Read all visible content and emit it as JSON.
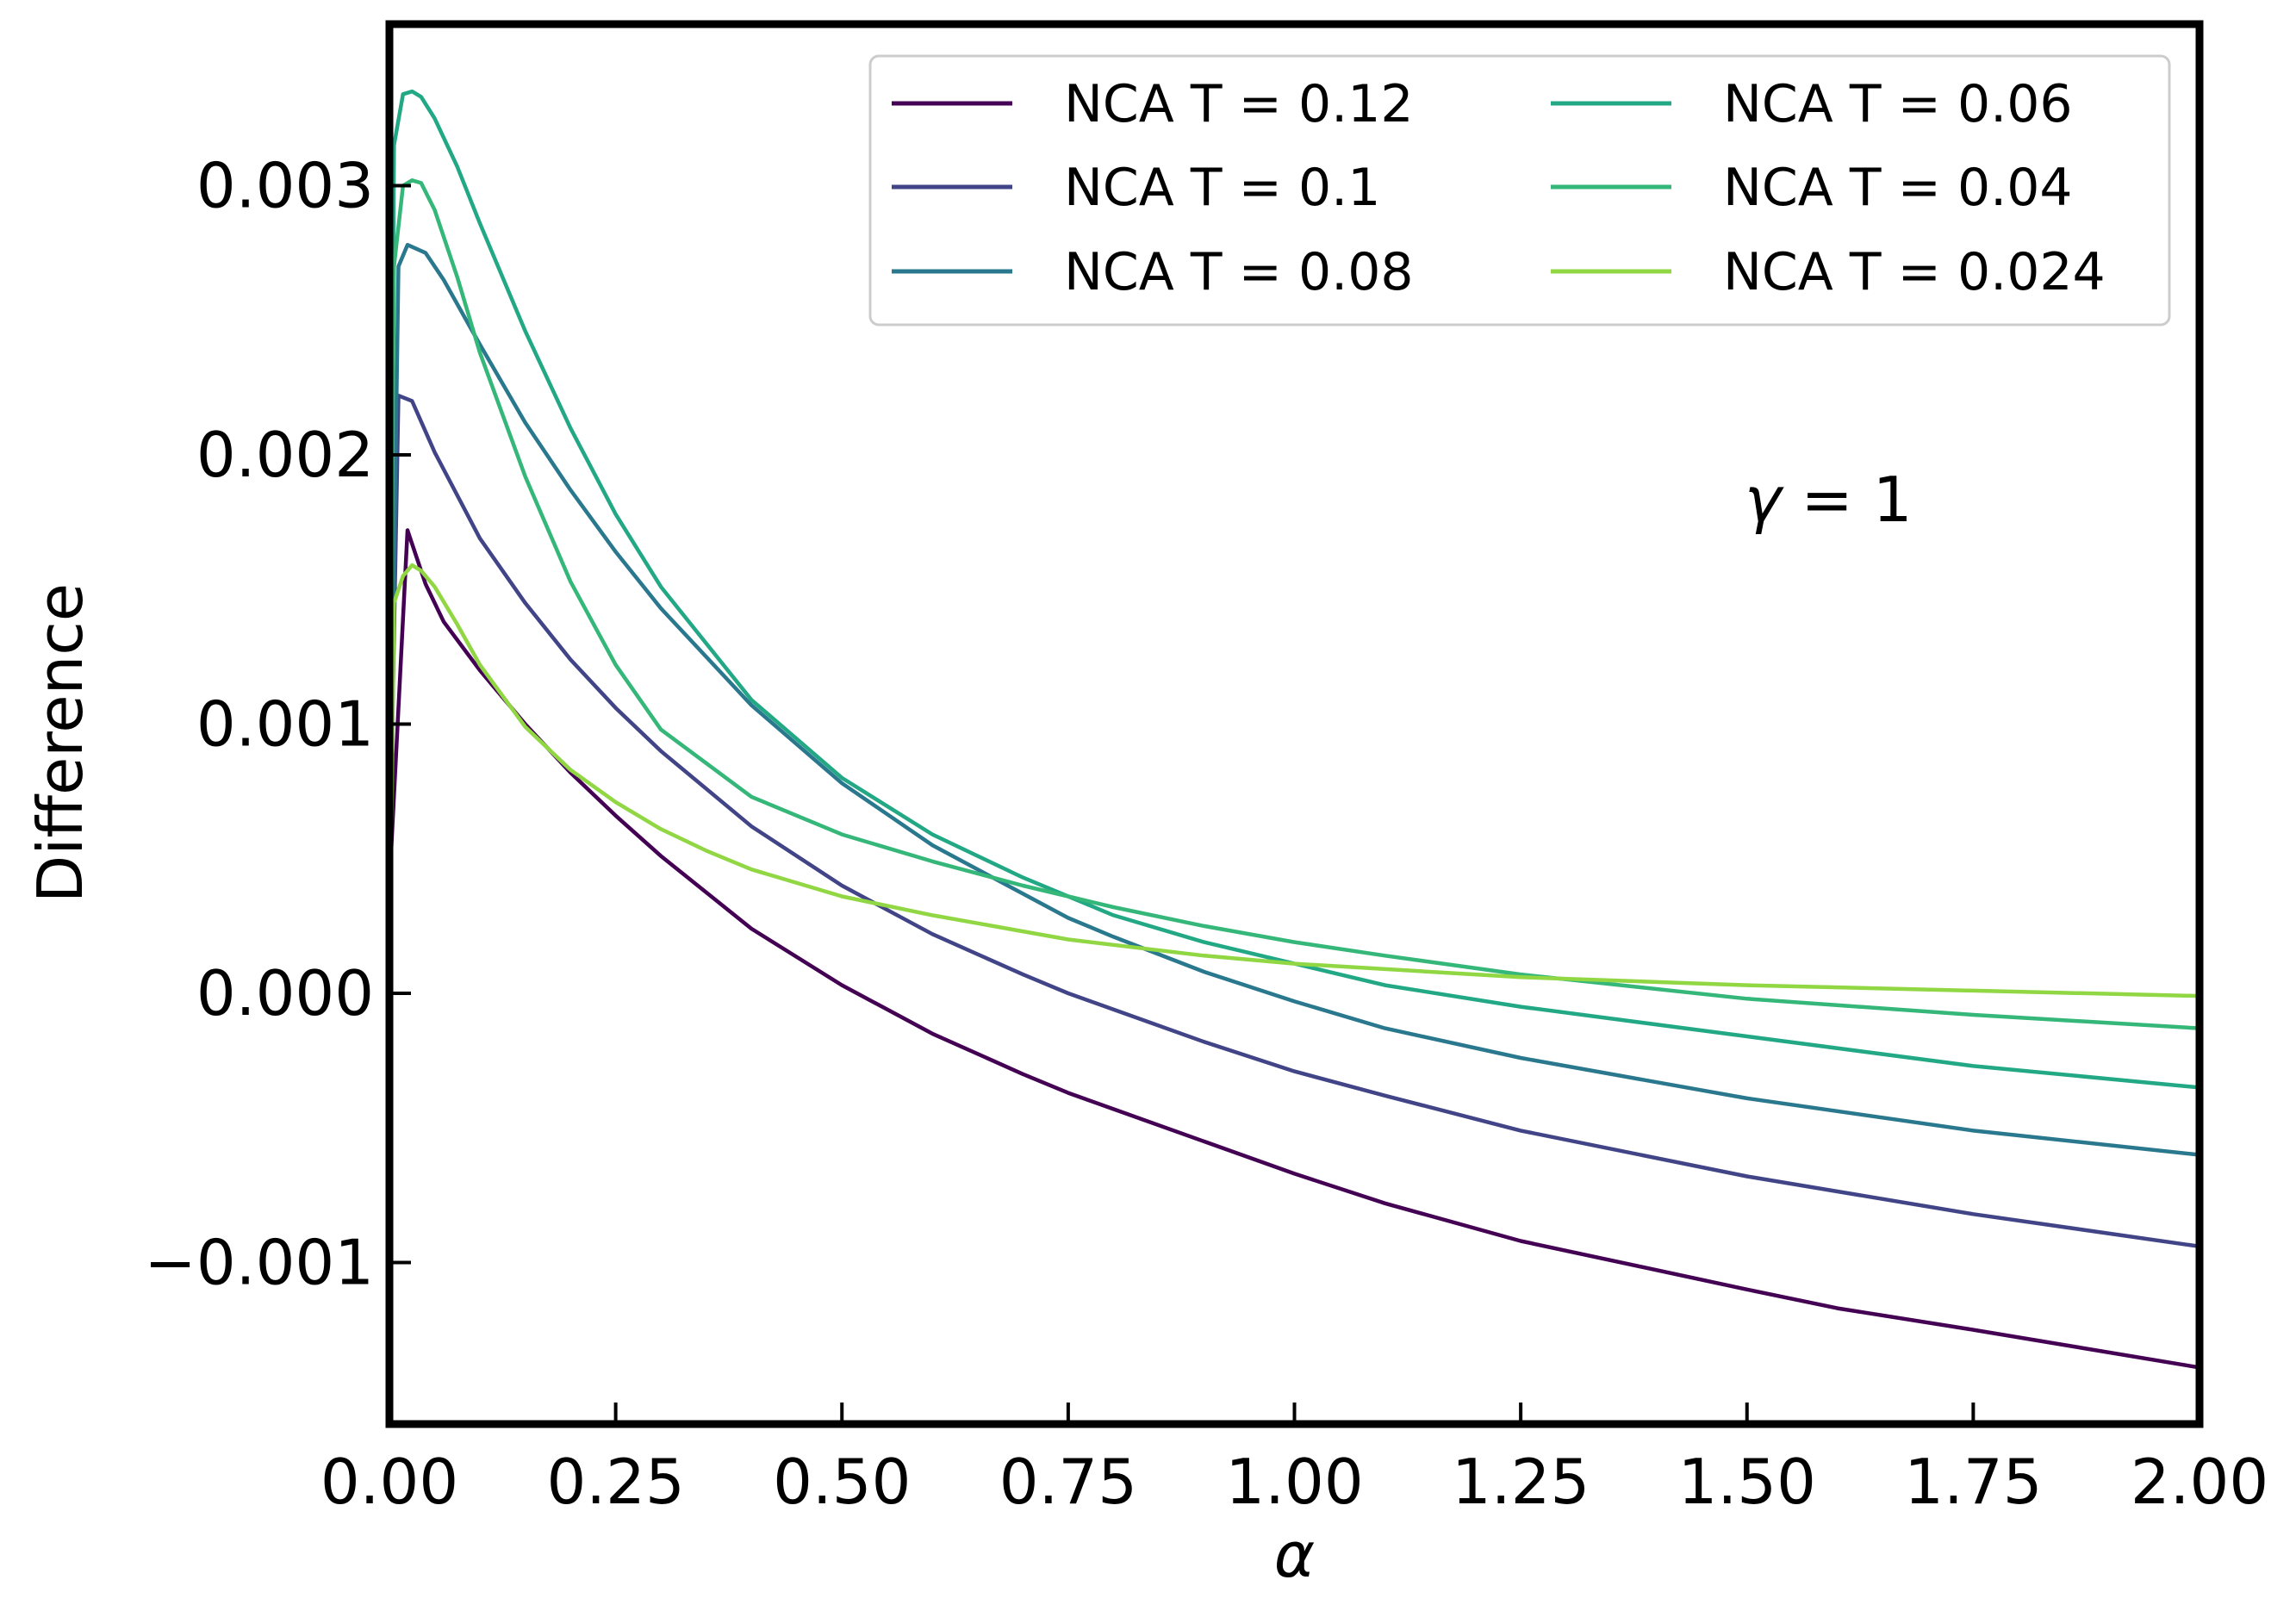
{
  "chart_data": {
    "type": "line",
    "xlabel": "α",
    "ylabel": "Difference",
    "xlim": [
      0,
      2
    ],
    "ylim": [
      -0.0016,
      0.0036
    ],
    "x_ticks": [
      {
        "value": 0,
        "label": "0.00"
      },
      {
        "value": 0.25,
        "label": "0.25"
      },
      {
        "value": 0.5,
        "label": "0.50"
      },
      {
        "value": 0.75,
        "label": "0.75"
      },
      {
        "value": 1.0,
        "label": "1.00"
      },
      {
        "value": 1.25,
        "label": "1.25"
      },
      {
        "value": 1.5,
        "label": "1.50"
      },
      {
        "value": 1.75,
        "label": "1.75"
      },
      {
        "value": 2.0,
        "label": "2.00"
      }
    ],
    "y_ticks": [
      {
        "value": -0.001,
        "label": "−0.001"
      },
      {
        "value": 0.0,
        "label": "0.000"
      },
      {
        "value": 0.001,
        "label": "0.001"
      },
      {
        "value": 0.002,
        "label": "0.002"
      },
      {
        "value": 0.003,
        "label": "0.003"
      }
    ],
    "grid": false,
    "legend_position": "top-right",
    "legend_columns": 2,
    "annotation": {
      "symbol": "γ",
      "rest": " = 1"
    },
    "series": [
      {
        "name": "NCA T = 0.12",
        "color": "#440154",
        "x": [
          0,
          0.02,
          0.04,
          0.06,
          0.08,
          0.1,
          0.15,
          0.2,
          0.25,
          0.3,
          0.4,
          0.5,
          0.6,
          0.7,
          0.75,
          0.8,
          0.9,
          1.0,
          1.1,
          1.25,
          1.5,
          1.6,
          1.75,
          2.0
        ],
        "y": [
          0.0004,
          0.00172,
          0.00152,
          0.00138,
          0.00129,
          0.0012,
          0.001,
          0.00082,
          0.00066,
          0.00051,
          0.00024,
          3e-05,
          -0.00015,
          -0.0003,
          -0.00037,
          -0.00043,
          -0.00055,
          -0.00067,
          -0.00078,
          -0.00092,
          -0.0011,
          -0.00117,
          -0.00125,
          -0.00139
        ]
      },
      {
        "name": "NCA T = 0.1",
        "color": "#414487",
        "x": [
          0,
          0.01,
          0.025,
          0.05,
          0.1,
          0.15,
          0.2,
          0.25,
          0.3,
          0.4,
          0.5,
          0.6,
          0.7,
          0.75,
          0.8,
          0.9,
          1.0,
          1.1,
          1.25,
          1.5,
          1.75,
          2.0
        ],
        "y": [
          0.0004,
          0.00222,
          0.0022,
          0.00201,
          0.00169,
          0.00145,
          0.00124,
          0.00106,
          0.0009,
          0.00062,
          0.0004,
          0.00022,
          7e-05,
          0.0,
          -6e-05,
          -0.00018,
          -0.00029,
          -0.00038,
          -0.00051,
          -0.00068,
          -0.00082,
          -0.00094
        ]
      },
      {
        "name": "NCA T = 0.08",
        "color": "#2a788e",
        "x": [
          0,
          0.01,
          0.02,
          0.04,
          0.06,
          0.1,
          0.15,
          0.2,
          0.25,
          0.3,
          0.4,
          0.5,
          0.6,
          0.7,
          0.75,
          0.8,
          0.9,
          1.0,
          1.1,
          1.25,
          1.5,
          1.75,
          2.0
        ],
        "y": [
          0.0004,
          0.0027,
          0.00278,
          0.00275,
          0.00265,
          0.00241,
          0.00212,
          0.00187,
          0.00164,
          0.00143,
          0.00107,
          0.00078,
          0.00055,
          0.00037,
          0.00028,
          0.00021,
          8e-05,
          -3e-05,
          -0.00013,
          -0.00024,
          -0.00039,
          -0.00051,
          -0.0006
        ]
      },
      {
        "name": "NCA T = 0.06",
        "color": "#22a884",
        "x": [
          0,
          0.005,
          0.015,
          0.025,
          0.035,
          0.05,
          0.075,
          0.1,
          0.15,
          0.2,
          0.25,
          0.3,
          0.4,
          0.5,
          0.6,
          0.7,
          0.75,
          0.8,
          0.9,
          1.0,
          1.1,
          1.25,
          1.5,
          1.75,
          2.0
        ],
        "y": [
          0.0004,
          0.00315,
          0.00334,
          0.00335,
          0.00333,
          0.00325,
          0.00307,
          0.00286,
          0.00246,
          0.0021,
          0.00178,
          0.00151,
          0.00109,
          0.0008,
          0.00059,
          0.00043,
          0.00036,
          0.00029,
          0.00019,
          0.00011,
          3e-05,
          -5e-05,
          -0.00016,
          -0.00027,
          -0.00035
        ]
      },
      {
        "name": "NCA T = 0.04",
        "color": "#35b779",
        "x": [
          0,
          0.005,
          0.015,
          0.025,
          0.035,
          0.05,
          0.075,
          0.1,
          0.15,
          0.2,
          0.25,
          0.3,
          0.4,
          0.5,
          0.6,
          0.7,
          0.75,
          0.8,
          0.9,
          1.0,
          1.1,
          1.25,
          1.5,
          1.75,
          2.0
        ],
        "y": [
          0.0004,
          0.0027,
          0.003,
          0.00302,
          0.00301,
          0.00291,
          0.00266,
          0.00238,
          0.00192,
          0.00153,
          0.00122,
          0.00098,
          0.00073,
          0.00059,
          0.00049,
          0.0004,
          0.00036,
          0.00032,
          0.00025,
          0.00019,
          0.00014,
          7e-05,
          -2e-05,
          -8e-05,
          -0.00013
        ]
      },
      {
        "name": "NCA T = 0.024",
        "color": "#90d743",
        "x": [
          0,
          0.005,
          0.015,
          0.025,
          0.035,
          0.05,
          0.075,
          0.1,
          0.15,
          0.2,
          0.25,
          0.3,
          0.35,
          0.4,
          0.5,
          0.6,
          0.7,
          0.75,
          0.8,
          0.9,
          1.0,
          1.25,
          1.5,
          1.75,
          2.0
        ],
        "y": [
          0.0,
          0.00145,
          0.00155,
          0.00159,
          0.00157,
          0.00151,
          0.00137,
          0.00122,
          0.00099,
          0.00083,
          0.00071,
          0.00061,
          0.00053,
          0.00046,
          0.00036,
          0.00029,
          0.00023,
          0.0002,
          0.00018,
          0.00014,
          0.00011,
          6e-05,
          3e-05,
          1e-05,
          -1e-05
        ]
      }
    ]
  }
}
